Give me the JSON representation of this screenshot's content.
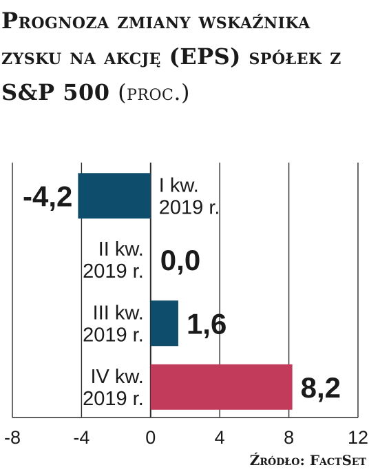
{
  "title": {
    "main": "Prognoza zmiany wskaźnika zysku na akcję (EPS) spółek z S&P 500",
    "unit": "(proc.)"
  },
  "source": "Źródło: FactSet",
  "chart_data": {
    "type": "bar",
    "orientation": "horizontal",
    "title": "Prognoza zmiany wskaźnika zysku na akcję (EPS) spółek z S&P 500 (proc.)",
    "categories": [
      [
        "I kw.",
        "2019 r."
      ],
      [
        "II kw.",
        "2019 r."
      ],
      [
        "III kw.",
        "2019 r."
      ],
      [
        "IV kw.",
        "2019 r."
      ]
    ],
    "values": [
      -4.2,
      0.0,
      1.6,
      8.2
    ],
    "value_labels": [
      "-4,2",
      "0,0",
      "1,6",
      "8,2"
    ],
    "bar_colors": [
      "#0e4d6b",
      "#0e4d6b",
      "#0e4d6b",
      "#c23b5a"
    ],
    "xlim": [
      -8,
      12
    ],
    "xticks": [
      -8,
      -4,
      0,
      4,
      8,
      12
    ],
    "xtick_labels": [
      "-8",
      "-4",
      "0",
      "4",
      "8",
      "12"
    ],
    "grid": true,
    "xlabel": "",
    "ylabel": ""
  }
}
